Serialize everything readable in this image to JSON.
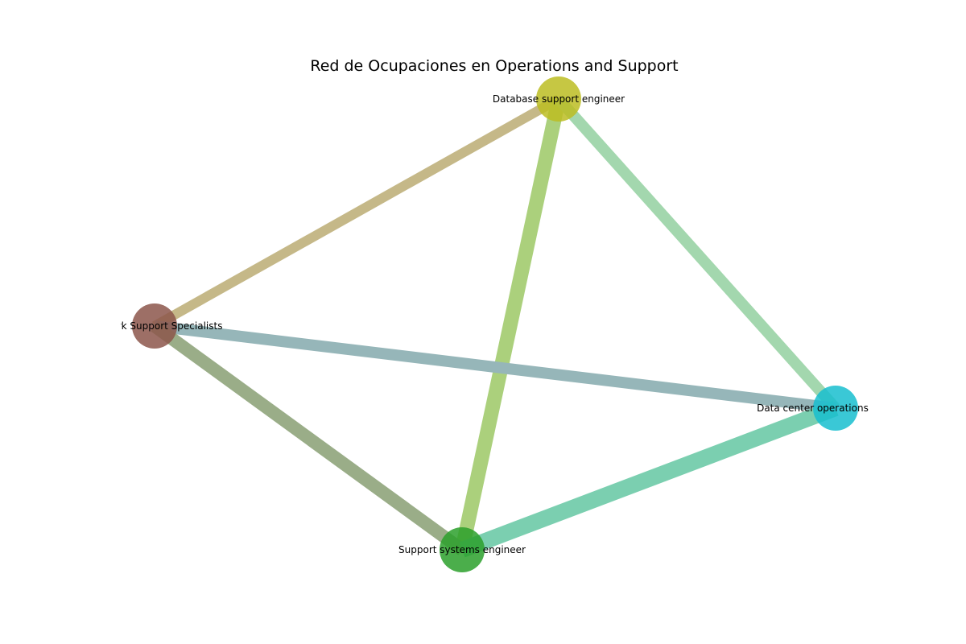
{
  "title": "Red de Ocupaciones en Operations and Support",
  "nodes": [
    {
      "id": "db",
      "label": "Database support engineer",
      "color": "#bcbd22"
    },
    {
      "id": "net",
      "label": "Network Support Specialists",
      "color": "#8c564b"
    },
    {
      "id": "dc",
      "label": "Data center operations engineer",
      "color": "#17becf"
    },
    {
      "id": "sse",
      "label": "Support systems engineer",
      "color": "#2ca02c"
    }
  ],
  "edges": [
    {
      "source": "db",
      "target": "net",
      "color": "#c5b888"
    },
    {
      "source": "db",
      "target": "sse",
      "color": "#abd07c"
    },
    {
      "source": "db",
      "target": "dc",
      "color": "#a3d7ae"
    },
    {
      "source": "net",
      "target": "dc",
      "color": "#96b6b9"
    },
    {
      "source": "net",
      "target": "sse",
      "color": "#9aad88"
    },
    {
      "source": "sse",
      "target": "dc",
      "color": "#7bcfb0"
    }
  ]
}
